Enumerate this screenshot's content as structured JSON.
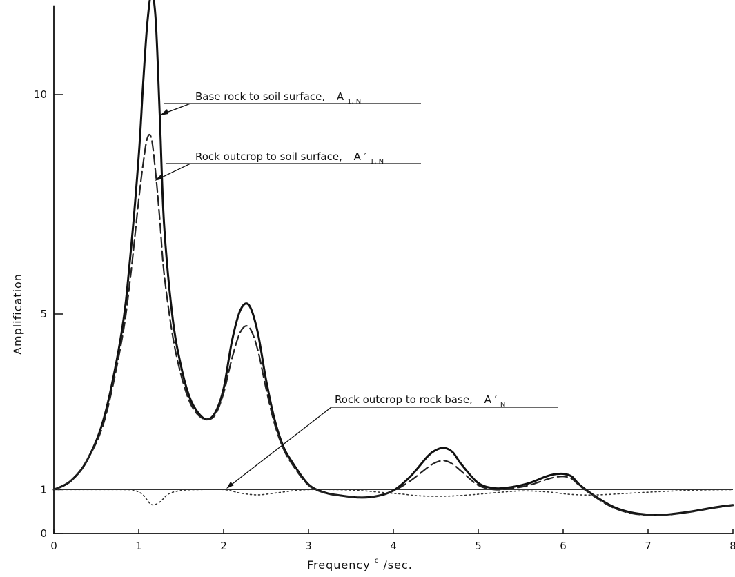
{
  "chart_data": {
    "type": "line",
    "xlabel": "Frequency",
    "xunit_sup": "c",
    "xunit_rest": "/sec.",
    "ylabel": "Amplification",
    "xlim": [
      0,
      8
    ],
    "ylim": [
      0,
      12
    ],
    "x_ticks": [
      "0",
      "1",
      "2",
      "3",
      "4",
      "5",
      "6",
      "7",
      "8"
    ],
    "y_ticks": [
      "0",
      "1",
      "5",
      "10"
    ],
    "reference_line_y": 1,
    "annotations": [
      {
        "text": "Base rock to soil surface,",
        "symbol": "A",
        "prime": "",
        "subscript": "1, N"
      },
      {
        "text": "Rock outcrop to soil surface,",
        "symbol": "A",
        "prime": "′",
        "subscript": "1, N"
      },
      {
        "text": "Rock outcrop to rock base,",
        "symbol": "A",
        "prime": "′",
        "subscript": "N"
      }
    ],
    "series": [
      {
        "style": "solid",
        "x": [
          0,
          0.2,
          0.4,
          0.6,
          0.8,
          0.9,
          1.0,
          1.05,
          1.1,
          1.15,
          1.2,
          1.25,
          1.3,
          1.4,
          1.5,
          1.6,
          1.7,
          1.8,
          1.9,
          2.0,
          2.1,
          2.2,
          2.3,
          2.4,
          2.5,
          2.6,
          2.7,
          2.8,
          3.0,
          3.2,
          3.4,
          3.6,
          3.8,
          4.0,
          4.2,
          4.4,
          4.5,
          4.6,
          4.7,
          4.8,
          5.0,
          5.2,
          5.4,
          5.6,
          5.8,
          5.9,
          6.0,
          6.1,
          6.2,
          6.4,
          6.6,
          6.8,
          7.0,
          7.2,
          7.5,
          7.8,
          8.0
        ],
        "y": [
          1.0,
          1.2,
          1.7,
          2.7,
          4.6,
          6.3,
          8.6,
          10.2,
          11.6,
          12.3,
          11.7,
          9.4,
          7.0,
          4.9,
          3.8,
          3.1,
          2.75,
          2.6,
          2.75,
          3.3,
          4.4,
          5.1,
          5.2,
          4.6,
          3.5,
          2.6,
          2.0,
          1.65,
          1.12,
          0.93,
          0.86,
          0.82,
          0.85,
          0.98,
          1.3,
          1.75,
          1.9,
          1.95,
          1.85,
          1.58,
          1.15,
          1.03,
          1.06,
          1.15,
          1.3,
          1.35,
          1.36,
          1.3,
          1.1,
          0.82,
          0.6,
          0.48,
          0.43,
          0.43,
          0.5,
          0.6,
          0.65
        ]
      },
      {
        "style": "dashed",
        "x": [
          0,
          0.2,
          0.4,
          0.6,
          0.8,
          0.9,
          1.0,
          1.05,
          1.1,
          1.15,
          1.2,
          1.25,
          1.3,
          1.4,
          1.5,
          1.6,
          1.7,
          1.8,
          1.9,
          2.0,
          2.1,
          2.2,
          2.3,
          2.4,
          2.5,
          2.6,
          2.7,
          2.8,
          3.0,
          3.2,
          3.4,
          3.6,
          3.8,
          4.0,
          4.2,
          4.4,
          4.5,
          4.6,
          4.7,
          4.8,
          5.0,
          5.2,
          5.4,
          5.6,
          5.8,
          5.9,
          6.0,
          6.1,
          6.2,
          6.4,
          6.6,
          6.8,
          7.0,
          7.2,
          7.5,
          7.8,
          8.0
        ],
        "y": [
          1.0,
          1.2,
          1.7,
          2.6,
          4.4,
          5.8,
          7.6,
          8.4,
          9.0,
          9.0,
          8.2,
          7.1,
          5.9,
          4.5,
          3.6,
          3.0,
          2.7,
          2.6,
          2.7,
          3.2,
          4.0,
          4.6,
          4.7,
          4.2,
          3.3,
          2.5,
          1.95,
          1.6,
          1.1,
          0.92,
          0.86,
          0.82,
          0.85,
          0.97,
          1.2,
          1.5,
          1.62,
          1.66,
          1.58,
          1.42,
          1.1,
          1.0,
          1.03,
          1.1,
          1.23,
          1.28,
          1.3,
          1.25,
          1.08,
          0.8,
          0.58,
          0.46,
          0.42,
          0.42,
          0.49,
          0.59,
          0.64
        ]
      },
      {
        "style": "dotted",
        "x": [
          0,
          0.8,
          0.95,
          1.05,
          1.15,
          1.25,
          1.35,
          1.5,
          1.7,
          2.0,
          2.2,
          2.4,
          2.6,
          2.8,
          3.0,
          3.3,
          3.6,
          3.9,
          4.1,
          4.3,
          4.6,
          4.9,
          5.2,
          5.5,
          5.8,
          6.1,
          6.4,
          6.8,
          7.2,
          7.6,
          8.0
        ],
        "y": [
          1.0,
          1.0,
          0.98,
          0.88,
          0.66,
          0.72,
          0.9,
          0.98,
          1.0,
          1.0,
          0.92,
          0.88,
          0.92,
          0.97,
          1.0,
          1.0,
          0.98,
          0.93,
          0.9,
          0.86,
          0.85,
          0.88,
          0.93,
          0.97,
          0.95,
          0.89,
          0.88,
          0.92,
          0.96,
          0.99,
          1.0
        ]
      }
    ]
  }
}
